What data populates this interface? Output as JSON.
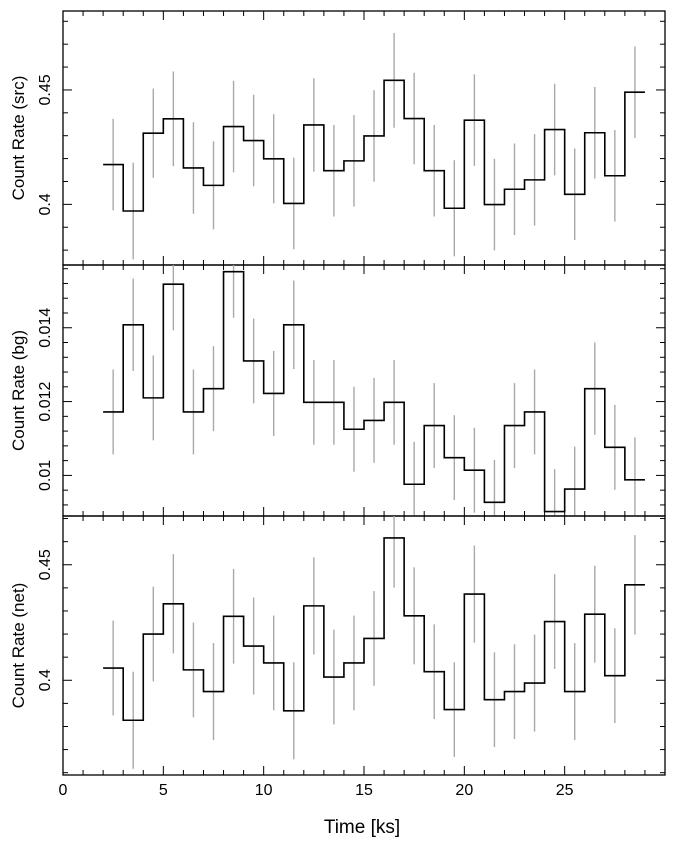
{
  "figure": {
    "xlabel": "Time [ks]"
  },
  "chart_data": [
    {
      "type": "line",
      "step": true,
      "ylabel": "Count Rate (src)",
      "xlim": [
        0,
        30
      ],
      "ylim": [
        0.3735,
        0.4845
      ],
      "xticks": [
        0,
        5,
        10,
        15,
        20,
        25
      ],
      "yticks": [
        0.4,
        0.45
      ],
      "ytick_labels": [
        "0.4",
        "0.45"
      ],
      "bin_width": 1,
      "x": [
        2.5,
        3.5,
        4.5,
        5.5,
        6.5,
        7.5,
        8.5,
        9.5,
        10.5,
        11.5,
        12.5,
        13.5,
        14.5,
        15.5,
        16.5,
        17.5,
        18.5,
        19.5,
        20.5,
        21.5,
        22.5,
        23.5,
        24.5,
        25.5,
        26.5,
        27.5,
        28.5
      ],
      "y": [
        0.4174,
        0.3971,
        0.4311,
        0.4374,
        0.4159,
        0.4083,
        0.434,
        0.4279,
        0.4199,
        0.4004,
        0.4347,
        0.4147,
        0.419,
        0.4299,
        0.4542,
        0.4375,
        0.4147,
        0.3983,
        0.4368,
        0.3999,
        0.4066,
        0.4107,
        0.4327,
        0.4044,
        0.4313,
        0.4125,
        0.449
      ],
      "err": [
        0.02,
        0.0211,
        0.0195,
        0.0207,
        0.02,
        0.0192,
        0.02,
        0.02,
        0.0195,
        0.02,
        0.0204,
        0.02,
        0.02,
        0.02,
        0.0207,
        0.02,
        0.02,
        0.021,
        0.02,
        0.02,
        0.02,
        0.02,
        0.02,
        0.02,
        0.02,
        0.02,
        0.02
      ]
    },
    {
      "type": "line",
      "step": true,
      "ylabel": "Count Rate (bg)",
      "xlim": [
        0,
        30
      ],
      "ylim": [
        0.0089,
        0.0157
      ],
      "xticks": [
        0,
        5,
        10,
        15,
        20,
        25
      ],
      "yticks": [
        0.01,
        0.012,
        0.014
      ],
      "ytick_labels": [
        "0.01",
        "0.012",
        "0.014"
      ],
      "bin_width": 1,
      "x": [
        2.5,
        3.5,
        4.5,
        5.5,
        6.5,
        7.5,
        8.5,
        9.5,
        10.5,
        11.5,
        12.5,
        13.5,
        14.5,
        15.5,
        16.5,
        17.5,
        18.5,
        19.5,
        20.5,
        21.5,
        22.5,
        23.5,
        24.5,
        25.5,
        26.5,
        27.5,
        28.5
      ],
      "y": [
        0.01172,
        0.01408,
        0.0121,
        0.01518,
        0.01172,
        0.01235,
        0.01552,
        0.0131,
        0.01222,
        0.01408,
        0.01198,
        0.01198,
        0.01125,
        0.01149,
        0.01198,
        0.00976,
        0.01135,
        0.01048,
        0.01014,
        0.00927,
        0.01135,
        0.01172,
        0.00902,
        0.00963,
        0.01235,
        0.01076,
        0.00988
      ],
      "err": [
        0.00115,
        0.00125,
        0.00115,
        0.00125,
        0.00115,
        0.00115,
        0.00125,
        0.00115,
        0.00115,
        0.0012,
        0.00115,
        0.00115,
        0.00115,
        0.00115,
        0.00115,
        0.00115,
        0.00115,
        0.00115,
        0.00115,
        0.00115,
        0.00115,
        0.00115,
        0.00115,
        0.00115,
        0.00125,
        0.00115,
        0.00115
      ]
    },
    {
      "type": "line",
      "step": true,
      "ylabel": "Count Rate (net)",
      "xlim": [
        0,
        30
      ],
      "ylim": [
        0.359,
        0.4711
      ],
      "xticks": [
        0,
        5,
        10,
        15,
        20,
        25
      ],
      "xtick_labels": [
        "0",
        "5",
        "10",
        "15",
        "20",
        "25"
      ],
      "yticks": [
        0.4,
        0.45
      ],
      "ytick_labels": [
        "0.4",
        "0.45"
      ],
      "bin_width": 1,
      "x": [
        2.5,
        3.5,
        4.5,
        5.5,
        6.5,
        7.5,
        8.5,
        9.5,
        10.5,
        11.5,
        12.5,
        13.5,
        14.5,
        15.5,
        16.5,
        17.5,
        18.5,
        19.5,
        20.5,
        21.5,
        22.5,
        23.5,
        24.5,
        25.5,
        26.5,
        27.5,
        28.5
      ],
      "y": [
        0.4053,
        0.3827,
        0.42,
        0.4331,
        0.4045,
        0.3951,
        0.4277,
        0.4148,
        0.4075,
        0.3868,
        0.4322,
        0.4014,
        0.4075,
        0.4181,
        0.4616,
        0.4279,
        0.4037,
        0.3873,
        0.4373,
        0.3916,
        0.3951,
        0.3988,
        0.4254,
        0.3951,
        0.4286,
        0.402,
        0.4413
      ],
      "err": [
        0.0205,
        0.021,
        0.0205,
        0.0215,
        0.0205,
        0.021,
        0.0205,
        0.021,
        0.0205,
        0.021,
        0.021,
        0.0205,
        0.0205,
        0.0205,
        0.0215,
        0.021,
        0.0205,
        0.0205,
        0.021,
        0.0205,
        0.0205,
        0.021,
        0.0205,
        0.021,
        0.021,
        0.0205,
        0.0215
      ]
    }
  ]
}
